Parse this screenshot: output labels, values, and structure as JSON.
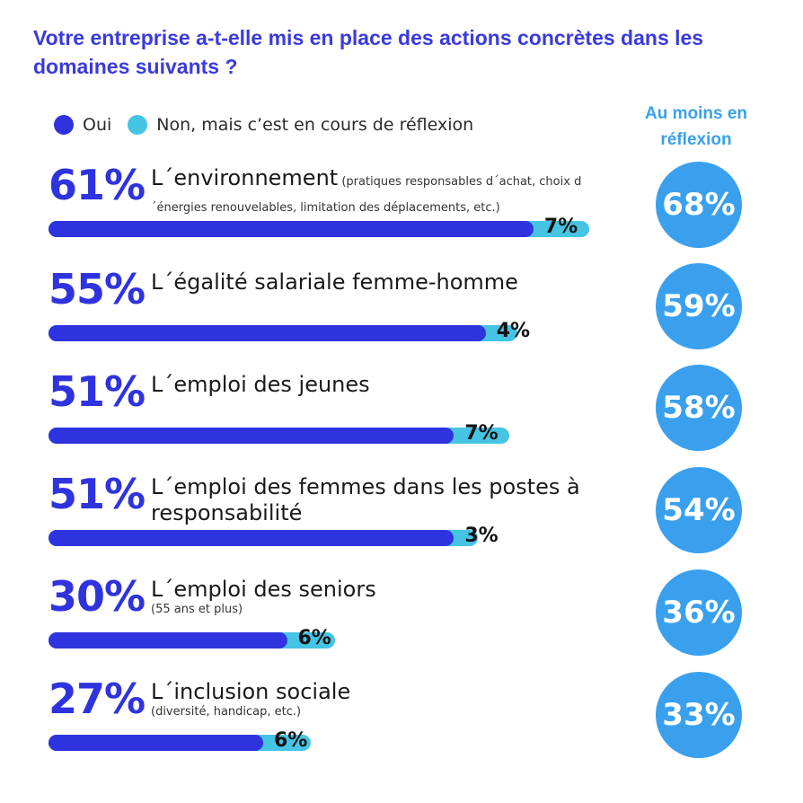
{
  "title": "Votre entreprise a-t-elle mis en place des actions concrètes dans les domaines suivants ?",
  "legend": {
    "oui": "Oui",
    "non": "Non, mais c’est en cours de réflexion"
  },
  "side_heading": "Au moins en réflexion",
  "colors": {
    "oui": "#2f33dd",
    "non": "#45c4e4",
    "circle": "#3aa0ee",
    "title": "#3a3ae0"
  },
  "chart_data": {
    "type": "bar",
    "orientation": "horizontal",
    "stacked": true,
    "categories": [
      "L´environnement",
      "L´égalité salariale femme-homme",
      "L´emploi des jeunes",
      "L´emploi des femmes dans les postes à responsabilité",
      "L´emploi des seniors",
      "L´inclusion sociale"
    ],
    "category_notes": [
      "(pratiques responsables d´achat, choix d´énergies renouvelables, limitation des déplacements, etc.)",
      "",
      "",
      "",
      "(55 ans et plus)",
      "(diversité, handicap, etc.)"
    ],
    "series": [
      {
        "name": "Oui",
        "values": [
          61,
          55,
          51,
          51,
          30,
          27
        ]
      },
      {
        "name": "Non, mais c’est en cours de réflexion",
        "values": [
          7,
          4,
          7,
          3,
          6,
          6
        ]
      }
    ],
    "totals_name": "Au moins en réflexion",
    "totals": [
      68,
      59,
      58,
      54,
      36,
      33
    ],
    "value_labels_oui": [
      "61%",
      "55%",
      "51%",
      "51%",
      "30%",
      "27%"
    ],
    "value_labels_non": [
      "7%",
      "4%",
      "7%",
      "3%",
      "6%",
      "6%"
    ],
    "value_labels_totals": [
      "68%",
      "59%",
      "58%",
      "54%",
      "36%",
      "33%"
    ],
    "xlim": [
      0,
      68
    ]
  }
}
